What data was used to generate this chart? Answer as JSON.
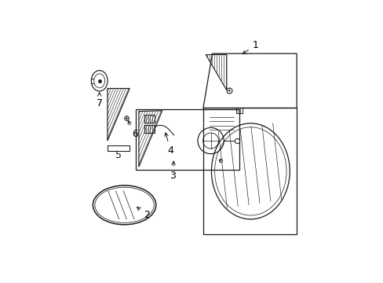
{
  "bg_color": "#ffffff",
  "line_color": "#1a1a1a",
  "figsize": [
    4.89,
    3.6
  ],
  "dpi": 100
}
